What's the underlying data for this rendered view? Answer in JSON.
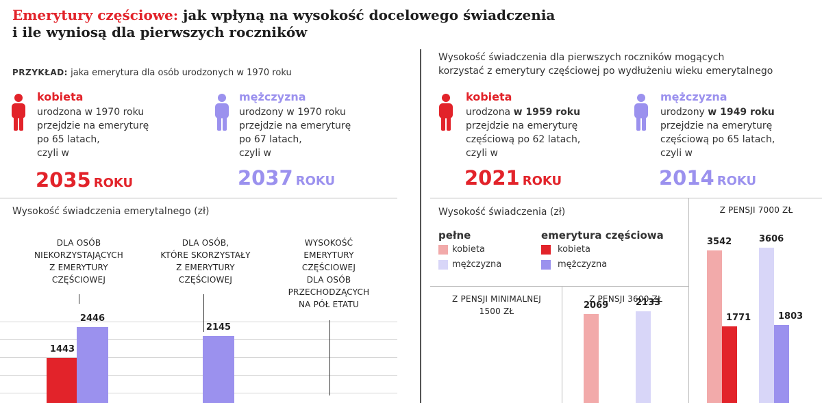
{
  "header": {
    "title_highlight": "Emerytury częściowe:",
    "title_rest": " jak wpłyną na wysokość docelowego świadczenia",
    "title_line2": "i ile wyniosą dla pierwszych roczników"
  },
  "left": {
    "example_label": "PRZYKŁAD:",
    "example_text": " jaka emerytura dla osób urodzonych w 1970 roku",
    "woman": {
      "label": "kobieta",
      "l1": "urodzona w 1970 roku",
      "l2": "przejdzie na emeryturę",
      "l3": "po 65 latach,",
      "l4": "czyli w",
      "year": "2035",
      "year_suffix": "ROKU"
    },
    "man": {
      "label": "mężczyzna",
      "l1": "urodzony w 1970 roku",
      "l2": "przejdzie na emeryturę",
      "l3": "po 67 latach,",
      "l4": "czyli w",
      "year": "2037",
      "year_suffix": "ROKU"
    },
    "chart_title": "Wysokość świadczenia emerytalnego (zł)",
    "captions": [
      [
        "DLA OSÓB",
        "NIEKORZYSTAJĄCYCH",
        "Z EMERYTURY",
        "CZĘŚCIOWEJ"
      ],
      [
        "DLA OSÓB,",
        "KTÓRE SKORZYSTAŁY",
        "Z EMERYTURY",
        "CZĘŚCIOWEJ"
      ],
      [
        "WYSOKOŚĆ",
        "EMERYTURY",
        "CZĘŚCIOWEJ",
        "DLA OSÓB",
        "PRZECHODZĄCYCH",
        "NA PÓŁ ETATU"
      ]
    ]
  },
  "right": {
    "intro_l1": "Wysokość świadczenia dla pierwszych roczników mogących",
    "intro_l2": "korzystać z emerytury częściowej po wydłużeniu wieku emerytalnego",
    "woman": {
      "label": "kobieta",
      "l1a": "urodzona ",
      "l1b": "w 1959 roku",
      "l2": "przejdzie na emeryturę",
      "l3": "częściową po 62 latach,",
      "l4": "czyli w",
      "year": "2021",
      "year_suffix": "ROKU"
    },
    "man": {
      "label": "mężczyzna",
      "l1a": "urodzony ",
      "l1b": "w 1949 roku",
      "l2": "przejdzie na emeryturę",
      "l3": "częściową po 65 latach,",
      "l4": "czyli w",
      "year": "2014",
      "year_suffix": "ROKU"
    },
    "chart_title": "Wysokość świadczenia (zł)",
    "legend": {
      "full_title": "pełne",
      "partial_title": "emerytura częściowa",
      "full_woman": "kobieta",
      "full_man": "mężczyzna",
      "partial_woman": "kobieta",
      "partial_man": "mężczyzna"
    },
    "group_labels": [
      "Z PENSJI MINIMALNEJ",
      "1500 ZŁ",
      "Z PENSJI 3600 ZŁ",
      "Z PENSJI 7000 ZŁ"
    ]
  },
  "colors": {
    "woman_full": "#f2aaaa",
    "man_full": "#d8d6f8",
    "woman_partial": "#e2232a",
    "man_partial": "#9b91ee"
  },
  "chart_data": [
    {
      "type": "bar",
      "title": "Wysokość świadczenia emerytalnego (zł)",
      "categories": [
        "DLA OSÓB NIEKORZYSTAJĄCYCH Z EMERYTURY CZĘŚCIOWEJ",
        "DLA OSÓB, KTÓRE SKORZYSTAŁY Z EMERYTURY CZĘŚCIOWEJ",
        "WYSOKOŚĆ EMERYTURY CZĘŚCIOWEJ DLA OSÓB PRZECHODZĄCYCH NA PÓŁ ETATU"
      ],
      "series": [
        {
          "name": "kobieta",
          "values": [
            1443,
            null,
            null
          ]
        },
        {
          "name": "mężczyzna",
          "values": [
            2446,
            2145,
            null
          ]
        }
      ]
    },
    {
      "type": "bar",
      "title": "Wysokość świadczenia (zł)",
      "categories": [
        "Z PENSJI MINIMALNEJ 1500 ZŁ",
        "Z PENSJI 3600 ZŁ",
        "Z PENSJI 7000 ZŁ"
      ],
      "series": [
        {
          "name": "pełne kobieta",
          "values": [
            null,
            2069,
            3542
          ]
        },
        {
          "name": "emerytura częściowa kobieta",
          "values": [
            null,
            null,
            1771
          ]
        },
        {
          "name": "pełne mężczyzna",
          "values": [
            null,
            2133,
            3606
          ]
        },
        {
          "name": "emerytura częściowa mężczyzna",
          "values": [
            null,
            null,
            1803
          ]
        }
      ]
    }
  ]
}
